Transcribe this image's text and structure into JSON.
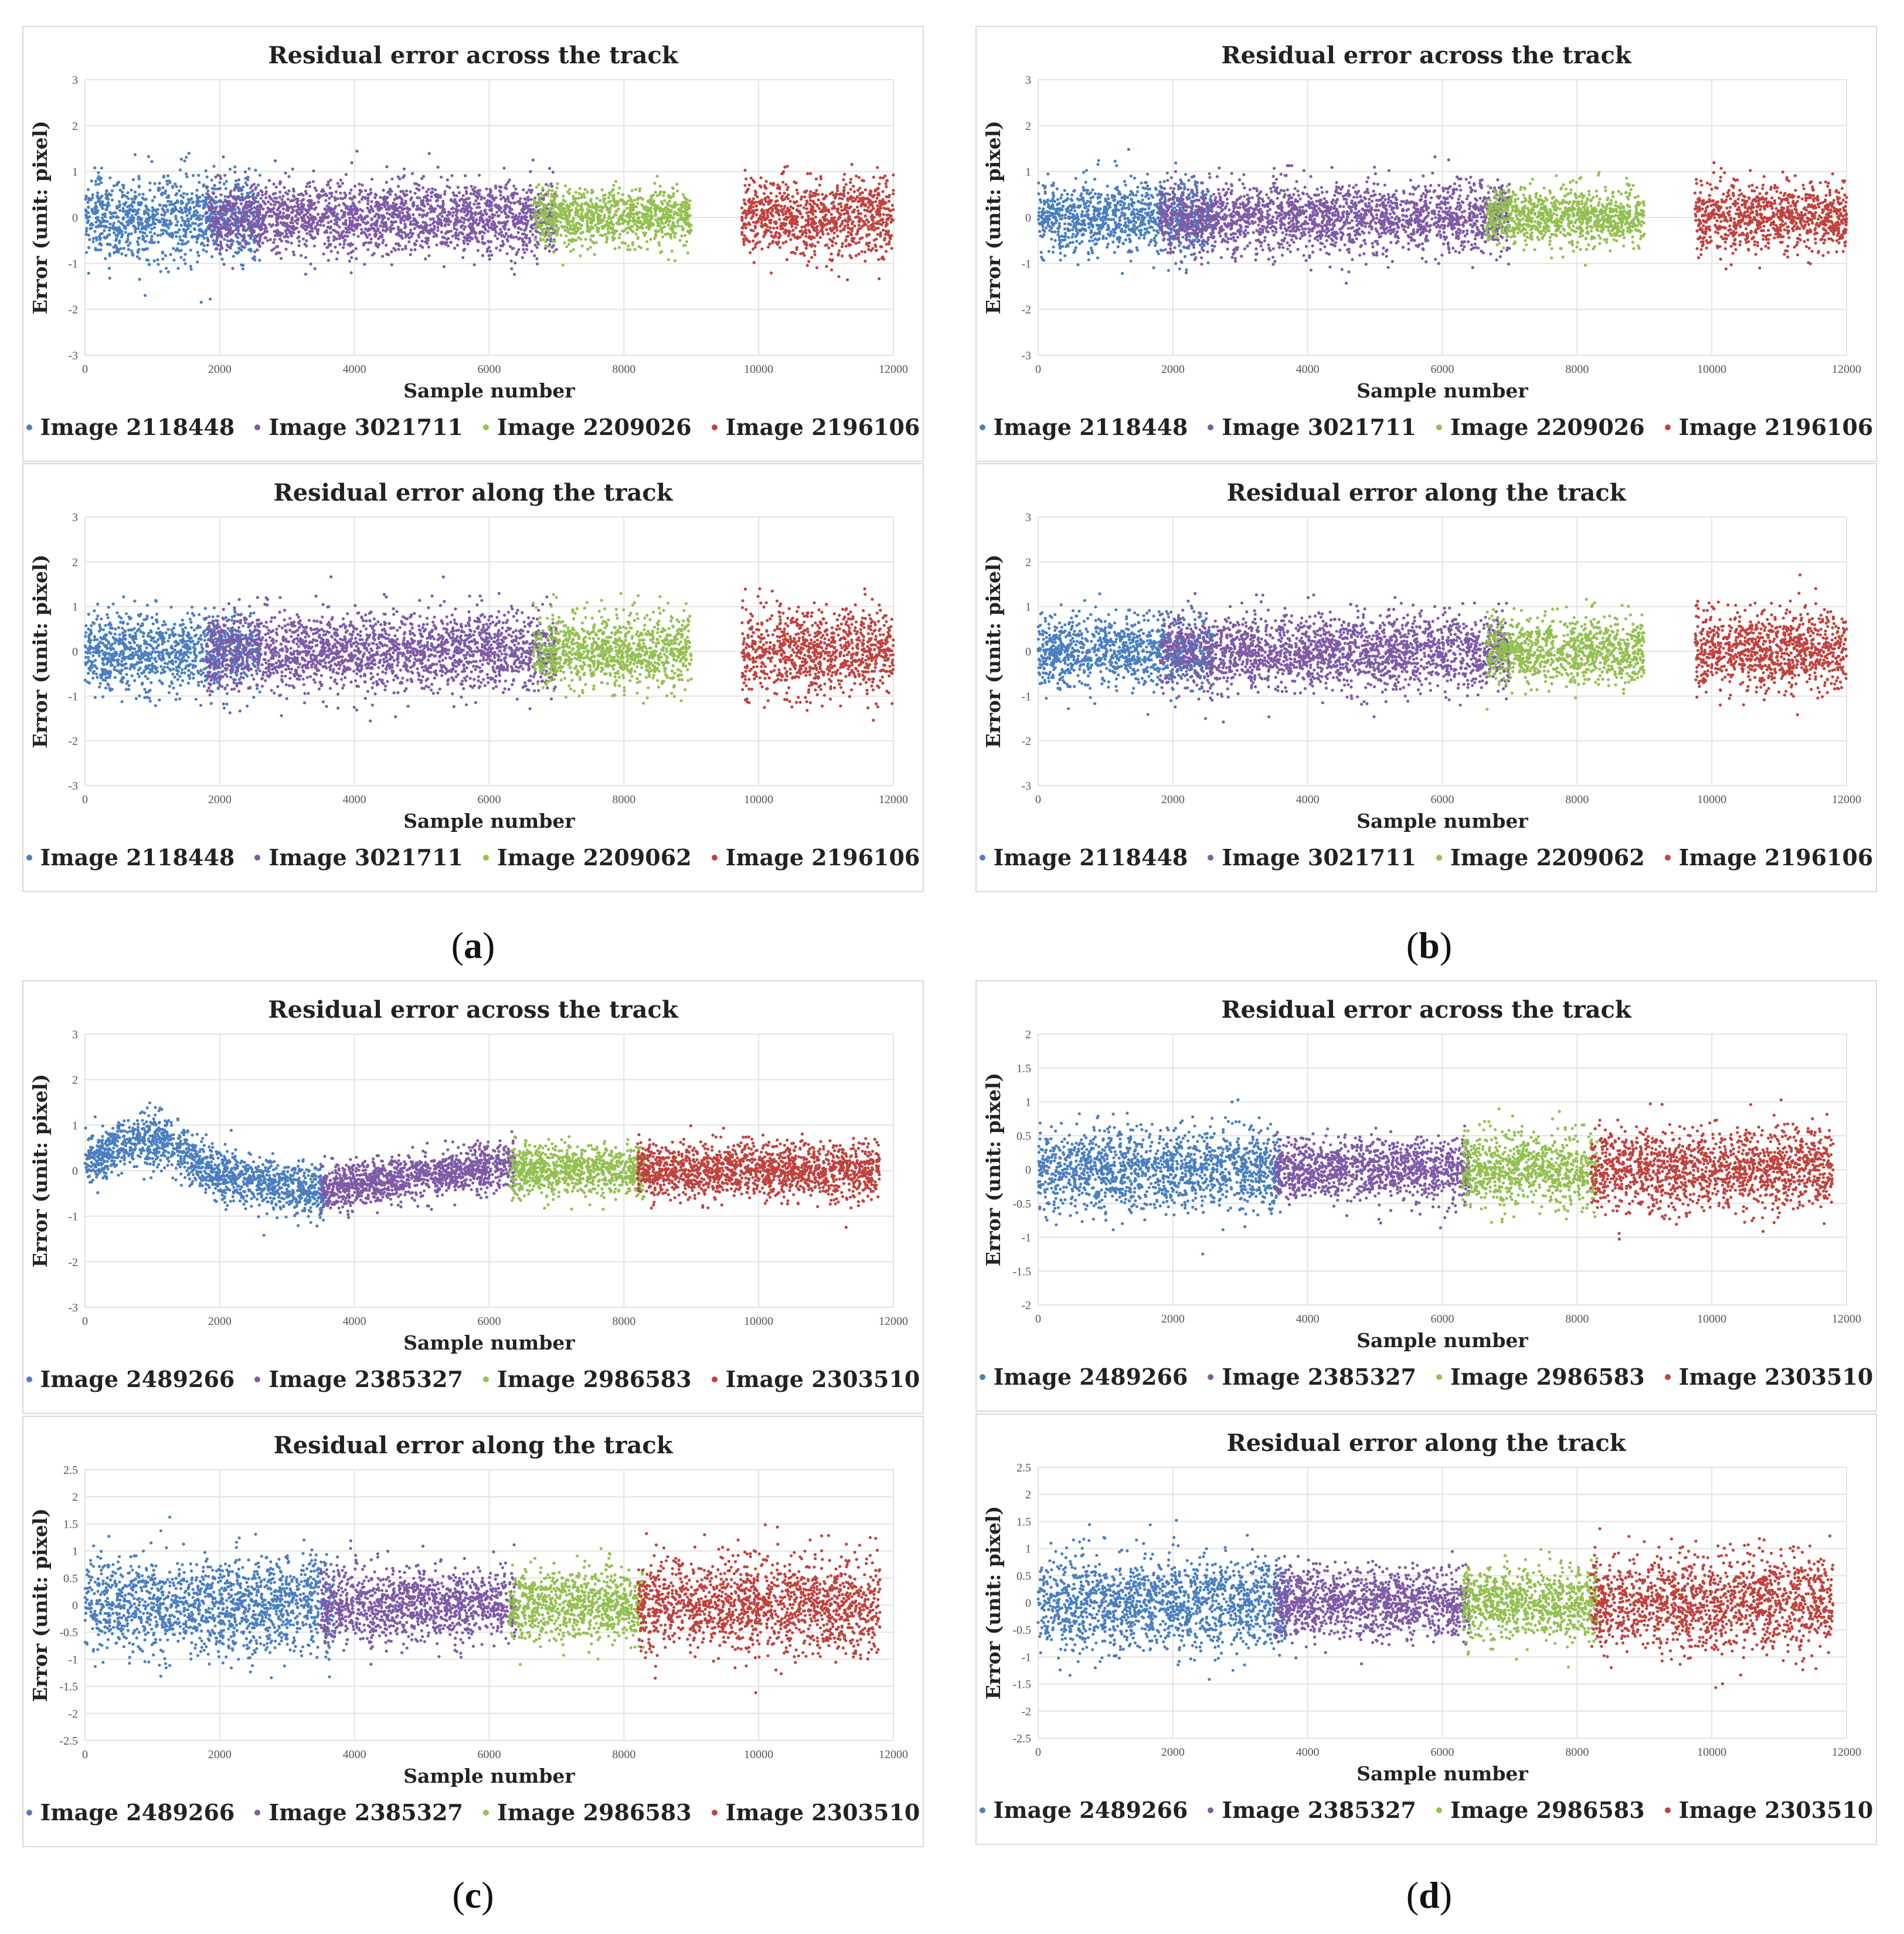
{
  "panel_labels": [
    "(a)",
    "(b)",
    "(c)",
    "(d)"
  ],
  "panel_letters": [
    "a",
    "b",
    "c",
    "d"
  ],
  "chart_data": [
    {
      "type": "scatter",
      "panel": "a",
      "title": "Residual error across the track",
      "xlabel": "Sample number",
      "ylabel": "Error (unit: pixel)",
      "xlim": [
        0,
        12000
      ],
      "ylim": [
        -3,
        3
      ],
      "xticks": [
        "0",
        "2000",
        "4000",
        "6000",
        "8000",
        "10000",
        "12000"
      ],
      "yticks": [
        "-3",
        "-2",
        "-1",
        "0",
        "1",
        "2",
        "3"
      ],
      "series": [
        {
          "name": "Image 2118448",
          "color": "#4a7fbf",
          "x_range": [
            0,
            2600
          ],
          "spread": 0.8
        },
        {
          "name": "Image 3021711",
          "color": "#7f5aa6",
          "x_range": [
            1800,
            7000
          ],
          "spread": 0.7
        },
        {
          "name": "Image 2209026",
          "color": "#93c050",
          "x_range": [
            6650,
            9000
          ],
          "spread": 0.55
        },
        {
          "name": "Image 2196106",
          "color": "#c0423e",
          "x_range": [
            9750,
            12000
          ],
          "spread": 0.75
        }
      ]
    },
    {
      "type": "scatter",
      "panel": "a",
      "title": "Residual error along the track",
      "xlabel": "Sample number",
      "ylabel": "Error (unit: pixel)",
      "xlim": [
        0,
        12000
      ],
      "ylim": [
        -3,
        3
      ],
      "xticks": [
        "0",
        "2000",
        "4000",
        "6000",
        "8000",
        "10000",
        "12000"
      ],
      "yticks": [
        "-3",
        "-2",
        "-1",
        "0",
        "1",
        "2",
        "3"
      ],
      "series": [
        {
          "name": "Image 2118448",
          "color": "#4a7fbf",
          "x_range": [
            0,
            2600
          ],
          "spread": 0.75
        },
        {
          "name": "Image 3021711",
          "color": "#7f5aa6",
          "x_range": [
            1800,
            7000
          ],
          "spread": 0.8
        },
        {
          "name": "Image 2209062",
          "color": "#93c050",
          "x_range": [
            6650,
            9000
          ],
          "spread": 0.7
        },
        {
          "name": "Image 2196106",
          "color": "#c0423e",
          "x_range": [
            9750,
            12000
          ],
          "spread": 0.9
        }
      ]
    },
    {
      "type": "scatter",
      "panel": "b",
      "title": "Residual error across the track",
      "xlabel": "Sample number",
      "ylabel": "Error (unit: pixel)",
      "xlim": [
        0,
        12000
      ],
      "ylim": [
        -3,
        3
      ],
      "xticks": [
        "0",
        "2000",
        "4000",
        "6000",
        "8000",
        "10000",
        "12000"
      ],
      "yticks": [
        "-3",
        "-2",
        "-1",
        "0",
        "1",
        "2",
        "3"
      ],
      "series": [
        {
          "name": "Image 2118448",
          "color": "#4a7fbf",
          "x_range": [
            0,
            2600
          ],
          "spread": 0.7
        },
        {
          "name": "Image 3021711",
          "color": "#7f5aa6",
          "x_range": [
            1800,
            7000
          ],
          "spread": 0.7
        },
        {
          "name": "Image 2209026",
          "color": "#93c050",
          "x_range": [
            6650,
            9000
          ],
          "spread": 0.55
        },
        {
          "name": "Image 2196106",
          "color": "#c0423e",
          "x_range": [
            9750,
            12000
          ],
          "spread": 0.7
        }
      ]
    },
    {
      "type": "scatter",
      "panel": "b",
      "title": "Residual error along the track",
      "xlabel": "Sample number",
      "ylabel": "Error (unit: pixel)",
      "xlim": [
        0,
        12000
      ],
      "ylim": [
        -3,
        3
      ],
      "xticks": [
        "0",
        "2000",
        "4000",
        "6000",
        "8000",
        "10000",
        "12000"
      ],
      "yticks": [
        "-3",
        "-2",
        "-1",
        "0",
        "1",
        "2",
        "3"
      ],
      "series": [
        {
          "name": "Image 2118448",
          "color": "#4a7fbf",
          "x_range": [
            0,
            2600
          ],
          "spread": 0.75
        },
        {
          "name": "Image 3021711",
          "color": "#7f5aa6",
          "x_range": [
            1800,
            7000
          ],
          "spread": 0.75
        },
        {
          "name": "Image 2209062",
          "color": "#93c050",
          "x_range": [
            6650,
            9000
          ],
          "spread": 0.65
        },
        {
          "name": "Image 2196106",
          "color": "#c0423e",
          "x_range": [
            9750,
            12000
          ],
          "spread": 0.85
        }
      ]
    },
    {
      "type": "scatter",
      "panel": "c",
      "title": "Residual error across the track",
      "xlabel": "Sample number",
      "ylabel": "Error (unit: pixel)",
      "xlim": [
        0,
        12000
      ],
      "ylim": [
        -3,
        3
      ],
      "xticks": [
        "0",
        "2000",
        "4000",
        "6000",
        "8000",
        "10000",
        "12000"
      ],
      "yticks": [
        "-3",
        "-2",
        "-1",
        "0",
        "1",
        "2",
        "3"
      ],
      "series": [
        {
          "name": "Image 2489266",
          "color": "#4a7fbf",
          "x_range": [
            0,
            3600
          ],
          "spread": 0.5,
          "trend": "bump"
        },
        {
          "name": "Image 2385327",
          "color": "#7f5aa6",
          "x_range": [
            3500,
            6400
          ],
          "spread": 0.45,
          "trend": "rise"
        },
        {
          "name": "Image 2986583",
          "color": "#93c050",
          "x_range": [
            6300,
            8300
          ],
          "spread": 0.5
        },
        {
          "name": "Image 2303510",
          "color": "#c0423e",
          "x_range": [
            8200,
            11800
          ],
          "spread": 0.55
        }
      ]
    },
    {
      "type": "scatter",
      "panel": "c",
      "title": "Residual error along the track",
      "xlabel": "Sample number",
      "ylabel": "Error (unit: pixel)",
      "xlim": [
        0,
        12000
      ],
      "ylim": [
        -2.5,
        2.5
      ],
      "xticks": [
        "0",
        "2000",
        "4000",
        "6000",
        "8000",
        "10000",
        "12000"
      ],
      "yticks": [
        "-2.5",
        "-2",
        "-1.5",
        "-1",
        "-0.5",
        "0",
        "0.5",
        "1",
        "1.5",
        "2",
        "2.5"
      ],
      "series": [
        {
          "name": "Image 2489266",
          "color": "#4a7fbf",
          "x_range": [
            0,
            3700
          ],
          "spread": 0.8
        },
        {
          "name": "Image 2385327",
          "color": "#7f5aa6",
          "x_range": [
            3500,
            6400
          ],
          "spread": 0.6
        },
        {
          "name": "Image 2986583",
          "color": "#93c050",
          "x_range": [
            6300,
            8300
          ],
          "spread": 0.6
        },
        {
          "name": "Image 2303510",
          "color": "#c0423e",
          "x_range": [
            8200,
            11800
          ],
          "spread": 0.8
        }
      ]
    },
    {
      "type": "scatter",
      "panel": "d",
      "title": "Residual error across the track",
      "xlabel": "Sample number",
      "ylabel": "Error (unit: pixel)",
      "xlim": [
        0,
        12000
      ],
      "ylim": [
        -2,
        2
      ],
      "xticks": [
        "0",
        "2000",
        "4000",
        "6000",
        "8000",
        "10000",
        "12000"
      ],
      "yticks": [
        "-2",
        "-1.5",
        "-1",
        "-0.5",
        "0",
        "0.5",
        "1",
        "1.5",
        "2"
      ],
      "series": [
        {
          "name": "Image 2489266",
          "color": "#4a7fbf",
          "x_range": [
            0,
            3600
          ],
          "spread": 0.55
        },
        {
          "name": "Image 2385327",
          "color": "#7f5aa6",
          "x_range": [
            3500,
            6400
          ],
          "spread": 0.4
        },
        {
          "name": "Image 2986583",
          "color": "#93c050",
          "x_range": [
            6300,
            8300
          ],
          "spread": 0.5
        },
        {
          "name": "Image 2303510",
          "color": "#c0423e",
          "x_range": [
            8200,
            11800
          ],
          "spread": 0.55
        }
      ]
    },
    {
      "type": "scatter",
      "panel": "d",
      "title": "Residual error along the track",
      "xlabel": "Sample number",
      "ylabel": "Error (unit: pixel)",
      "xlim": [
        0,
        12000
      ],
      "ylim": [
        -2.5,
        2.5
      ],
      "xticks": [
        "0",
        "2000",
        "4000",
        "6000",
        "8000",
        "10000",
        "12000"
      ],
      "yticks": [
        "-2.5",
        "-2",
        "-1.5",
        "-1",
        "-0.5",
        "0",
        "0.5",
        "1",
        "1.5",
        "2",
        "2.5"
      ],
      "series": [
        {
          "name": "Image 2489266",
          "color": "#4a7fbf",
          "x_range": [
            0,
            3700
          ],
          "spread": 0.8
        },
        {
          "name": "Image 2385327",
          "color": "#7f5aa6",
          "x_range": [
            3500,
            6400
          ],
          "spread": 0.6
        },
        {
          "name": "Image 2986583",
          "color": "#93c050",
          "x_range": [
            6300,
            8300
          ],
          "spread": 0.6
        },
        {
          "name": "Image 2303510",
          "color": "#c0423e",
          "x_range": [
            8200,
            11800
          ],
          "spread": 0.8
        }
      ]
    }
  ]
}
